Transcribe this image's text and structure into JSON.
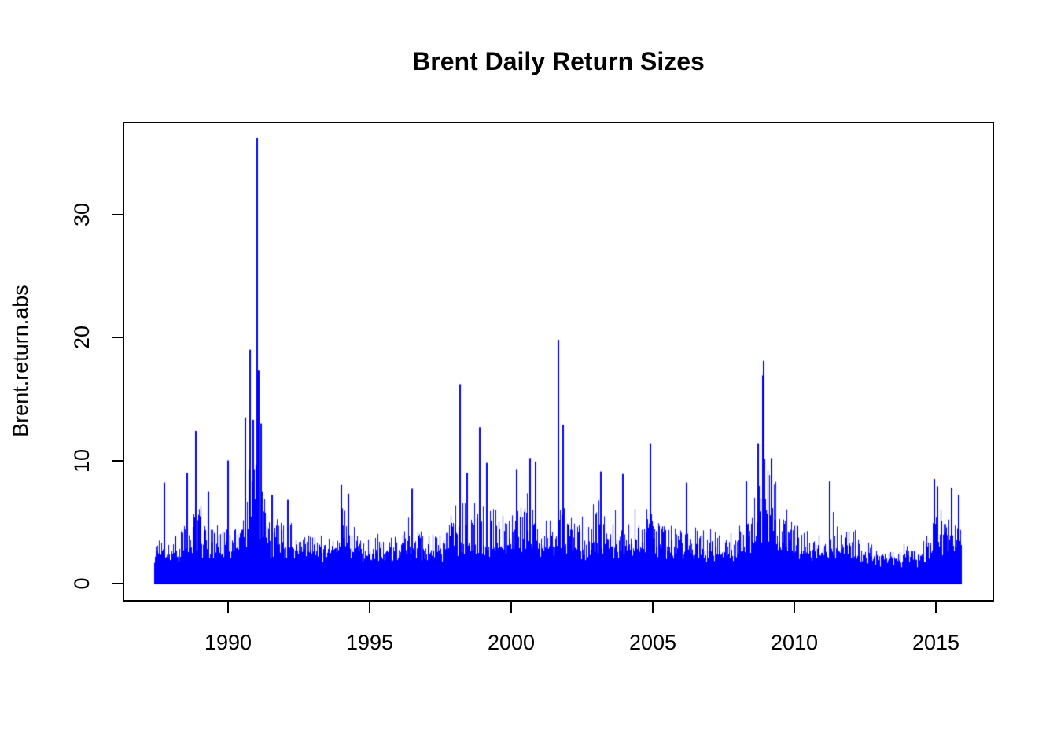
{
  "chart_data": {
    "type": "line",
    "title": "Brent Daily Return Sizes",
    "xlabel": "",
    "ylabel": "Brent.return.abs",
    "series_name": "Brent.return.abs",
    "line_color": "#0000FF",
    "axis_color": "#000000",
    "background_color": "#FFFFFF",
    "grid": false,
    "legend": "none",
    "x_ticks": [
      1990,
      1995,
      2000,
      2005,
      2010,
      2015
    ],
    "y_ticks": [
      0,
      10,
      20,
      30
    ],
    "x_range": [
      1987.4,
      2015.9
    ],
    "ylim": [
      0,
      37.4
    ],
    "description": "Daily absolute returns (%) of Brent crude oil, plotted as dense vertical spikes",
    "peaks": [
      [
        1987.75,
        8.2
      ],
      [
        1988.55,
        9.0
      ],
      [
        1988.85,
        12.4
      ],
      [
        1989.3,
        7.5
      ],
      [
        1990.0,
        10.0
      ],
      [
        1990.62,
        13.5
      ],
      [
        1990.78,
        19.0
      ],
      [
        1990.9,
        13.3
      ],
      [
        1991.03,
        36.2
      ],
      [
        1991.08,
        17.3
      ],
      [
        1991.17,
        13.0
      ],
      [
        1991.55,
        7.2
      ],
      [
        1992.1,
        6.8
      ],
      [
        1994.0,
        8.0
      ],
      [
        1994.25,
        7.3
      ],
      [
        1996.5,
        7.7
      ],
      [
        1998.19,
        16.2
      ],
      [
        1998.45,
        9.0
      ],
      [
        1998.9,
        12.7
      ],
      [
        1999.15,
        9.8
      ],
      [
        2000.2,
        9.3
      ],
      [
        2000.66,
        10.2
      ],
      [
        2000.85,
        9.9
      ],
      [
        2001.67,
        19.8
      ],
      [
        2001.83,
        12.9
      ],
      [
        2003.17,
        9.1
      ],
      [
        2003.95,
        8.9
      ],
      [
        2004.92,
        11.4
      ],
      [
        2006.2,
        8.2
      ],
      [
        2008.3,
        8.3
      ],
      [
        2008.72,
        11.4
      ],
      [
        2008.88,
        16.9
      ],
      [
        2008.93,
        18.1
      ],
      [
        2009.2,
        10.2
      ],
      [
        2011.24,
        8.3
      ],
      [
        2014.95,
        8.5
      ],
      [
        2015.05,
        7.9
      ],
      [
        2015.55,
        7.8
      ],
      [
        2015.8,
        7.2
      ]
    ],
    "envelope": [
      [
        1987.4,
        3.5
      ],
      [
        1987.7,
        4.2
      ],
      [
        1988.0,
        3.6
      ],
      [
        1988.4,
        4.5
      ],
      [
        1988.8,
        6.0
      ],
      [
        1989.2,
        5.0
      ],
      [
        1989.6,
        4.0
      ],
      [
        1990.0,
        5.0
      ],
      [
        1990.4,
        4.2
      ],
      [
        1990.7,
        8.0
      ],
      [
        1990.9,
        10.5
      ],
      [
        1991.05,
        10.0
      ],
      [
        1991.2,
        7.5
      ],
      [
        1991.5,
        5.0
      ],
      [
        1991.8,
        5.5
      ],
      [
        1992.1,
        5.0
      ],
      [
        1992.5,
        4.0
      ],
      [
        1993.0,
        3.8
      ],
      [
        1993.5,
        4.0
      ],
      [
        1994.0,
        6.0
      ],
      [
        1994.3,
        5.0
      ],
      [
        1994.7,
        3.5
      ],
      [
        1995.0,
        3.2
      ],
      [
        1995.5,
        3.5
      ],
      [
        1996.0,
        3.8
      ],
      [
        1996.5,
        5.0
      ],
      [
        1997.0,
        4.0
      ],
      [
        1997.5,
        4.2
      ],
      [
        1998.0,
        5.5
      ],
      [
        1998.3,
        6.0
      ],
      [
        1998.7,
        5.5
      ],
      [
        1999.0,
        5.5
      ],
      [
        1999.5,
        5.0
      ],
      [
        2000.0,
        5.5
      ],
      [
        2000.5,
        6.5
      ],
      [
        2001.0,
        5.5
      ],
      [
        2001.5,
        5.0
      ],
      [
        2001.8,
        6.5
      ],
      [
        2002.2,
        5.0
      ],
      [
        2002.6,
        4.5
      ],
      [
        2003.0,
        6.0
      ],
      [
        2003.3,
        5.5
      ],
      [
        2003.8,
        4.8
      ],
      [
        2004.2,
        5.5
      ],
      [
        2004.6,
        5.0
      ],
      [
        2005.0,
        5.5
      ],
      [
        2005.5,
        4.5
      ],
      [
        2006.0,
        4.5
      ],
      [
        2006.5,
        4.2
      ],
      [
        2007.0,
        3.8
      ],
      [
        2007.5,
        4.0
      ],
      [
        2008.0,
        4.2
      ],
      [
        2008.4,
        5.0
      ],
      [
        2008.7,
        8.0
      ],
      [
        2008.95,
        11.0
      ],
      [
        2009.2,
        8.0
      ],
      [
        2009.5,
        6.0
      ],
      [
        2010.0,
        4.0
      ],
      [
        2010.5,
        4.5
      ],
      [
        2011.0,
        4.0
      ],
      [
        2011.3,
        5.5
      ],
      [
        2011.7,
        4.5
      ],
      [
        2012.0,
        4.5
      ],
      [
        2012.5,
        3.5
      ],
      [
        2013.0,
        2.8
      ],
      [
        2013.5,
        2.5
      ],
      [
        2014.0,
        2.8
      ],
      [
        2014.4,
        2.6
      ],
      [
        2014.7,
        4.5
      ],
      [
        2015.0,
        6.0
      ],
      [
        2015.3,
        5.0
      ],
      [
        2015.6,
        6.5
      ],
      [
        2015.9,
        7.0
      ]
    ],
    "baseline_band": [
      0.4,
      2.0
    ]
  }
}
